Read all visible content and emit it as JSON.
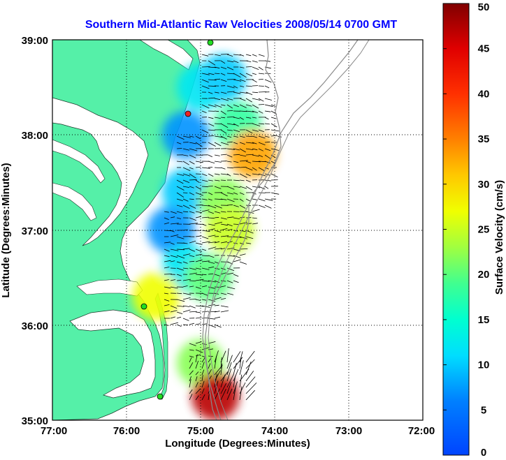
{
  "title": "Southern Mid-Atlantic Raw Velocities 2008/05/14 0700 GMT",
  "x_axis": {
    "label": "Longitude (Degrees:Minutes)",
    "ticks": [
      "77:00",
      "76:00",
      "75:00",
      "74:00",
      "73:00",
      "72:00"
    ]
  },
  "y_axis": {
    "label": "Latitude (Degrees:Minutes)",
    "ticks": [
      "39:00",
      "38:00",
      "37:00",
      "36:00",
      "35:00"
    ]
  },
  "colorbar": {
    "label": "Surface Velocity (cm/s)",
    "ticks": [
      "50",
      "45",
      "40",
      "35",
      "30",
      "25",
      "20",
      "15",
      "10",
      "5",
      "0"
    ],
    "min": 0,
    "max": 50,
    "colormap": "jet"
  },
  "colors": {
    "land": "#55f0a8",
    "isobath": "#8a8a8a",
    "vector": "#000000",
    "title": "#0000ff"
  },
  "legend_markers": {
    "station_colors": [
      "#22dd22",
      "#ee2222"
    ]
  },
  "map_extent": {
    "lon_range": [
      -77,
      -72
    ],
    "lat_range": [
      35,
      39
    ]
  },
  "grid": "dotted",
  "chart_data": {
    "type": "heatmap",
    "title": "Southern Mid-Atlantic Raw Velocities 2008/05/14 0700 GMT",
    "xlabel": "Longitude (Degrees:Minutes)",
    "ylabel": "Latitude (Degrees:Minutes)",
    "xlim": [
      -77,
      -72
    ],
    "ylim": [
      35,
      39
    ],
    "colorbar_label": "Surface Velocity (cm/s)",
    "clim": [
      0,
      50
    ],
    "speed_regions": [
      {
        "lon": -75.0,
        "lat": 38.5,
        "speed": 12
      },
      {
        "lon": -74.7,
        "lat": 38.6,
        "speed": 10
      },
      {
        "lon": -74.5,
        "lat": 38.1,
        "speed": 18
      },
      {
        "lon": -74.3,
        "lat": 37.8,
        "speed": 33
      },
      {
        "lon": -75.2,
        "lat": 38.0,
        "speed": 7
      },
      {
        "lon": -75.2,
        "lat": 37.4,
        "speed": 10
      },
      {
        "lon": -74.7,
        "lat": 37.3,
        "speed": 22
      },
      {
        "lon": -74.6,
        "lat": 37.0,
        "speed": 25
      },
      {
        "lon": -75.4,
        "lat": 37.0,
        "speed": 7
      },
      {
        "lon": -75.2,
        "lat": 36.6,
        "speed": 12
      },
      {
        "lon": -74.9,
        "lat": 36.5,
        "speed": 20
      },
      {
        "lon": -75.6,
        "lat": 36.3,
        "speed": 27
      },
      {
        "lon": -75.0,
        "lat": 35.6,
        "speed": 22
      },
      {
        "lon": -74.8,
        "lat": 35.25,
        "speed": 47
      }
    ]
  }
}
